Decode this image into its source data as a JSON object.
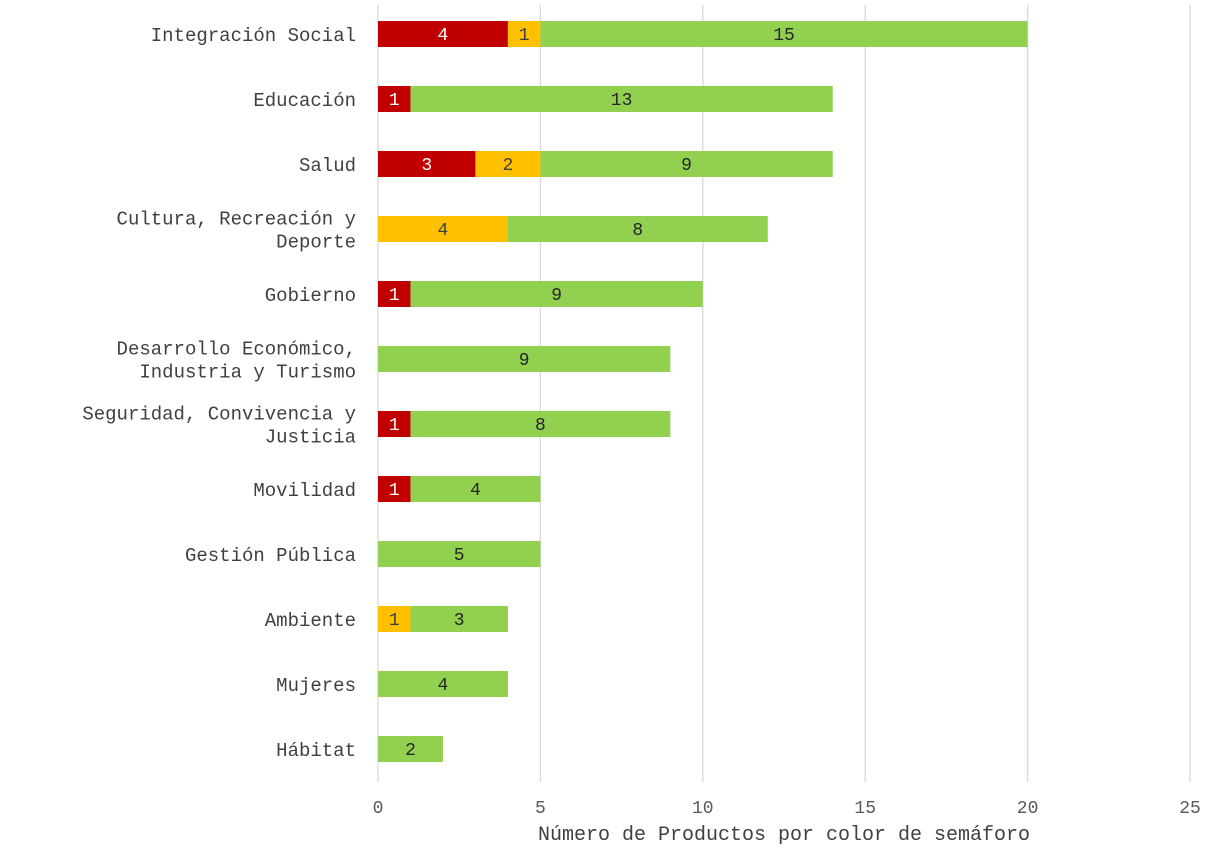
{
  "chart_data": {
    "type": "bar",
    "orientation": "horizontal",
    "stacked": true,
    "title": "",
    "xlabel": "Número de Productos por color de semáforo",
    "ylabel": "",
    "xlim": [
      0,
      25
    ],
    "xticks": [
      0,
      5,
      10,
      15,
      20,
      25
    ],
    "grid": "vertical",
    "legend": "none",
    "categories": [
      [
        "Integración Social"
      ],
      [
        "Educación"
      ],
      [
        "Salud"
      ],
      [
        "Cultura, Recreación y",
        "Deporte"
      ],
      [
        "Gobierno"
      ],
      [
        "Desarrollo Económico,",
        "Industria y Turismo"
      ],
      [
        "Seguridad, Convivencia y",
        "Justicia"
      ],
      [
        "Movilidad"
      ],
      [
        "Gestión Pública"
      ],
      [
        "Ambiente"
      ],
      [
        "Mujeres"
      ],
      [
        "Hábitat"
      ]
    ],
    "series": [
      {
        "color": "#c00000",
        "label_color": "#ffffff",
        "values": [
          4,
          1,
          3,
          0,
          1,
          0,
          1,
          1,
          0,
          0,
          0,
          0
        ]
      },
      {
        "color": "#ffc000",
        "label_color": "#404040",
        "values": [
          1,
          0,
          2,
          4,
          0,
          0,
          0,
          0,
          0,
          1,
          0,
          0
        ]
      },
      {
        "color": "#92d050",
        "label_color": "#262626",
        "values": [
          15,
          13,
          9,
          8,
          9,
          9,
          8,
          4,
          5,
          3,
          4,
          2
        ]
      }
    ]
  }
}
